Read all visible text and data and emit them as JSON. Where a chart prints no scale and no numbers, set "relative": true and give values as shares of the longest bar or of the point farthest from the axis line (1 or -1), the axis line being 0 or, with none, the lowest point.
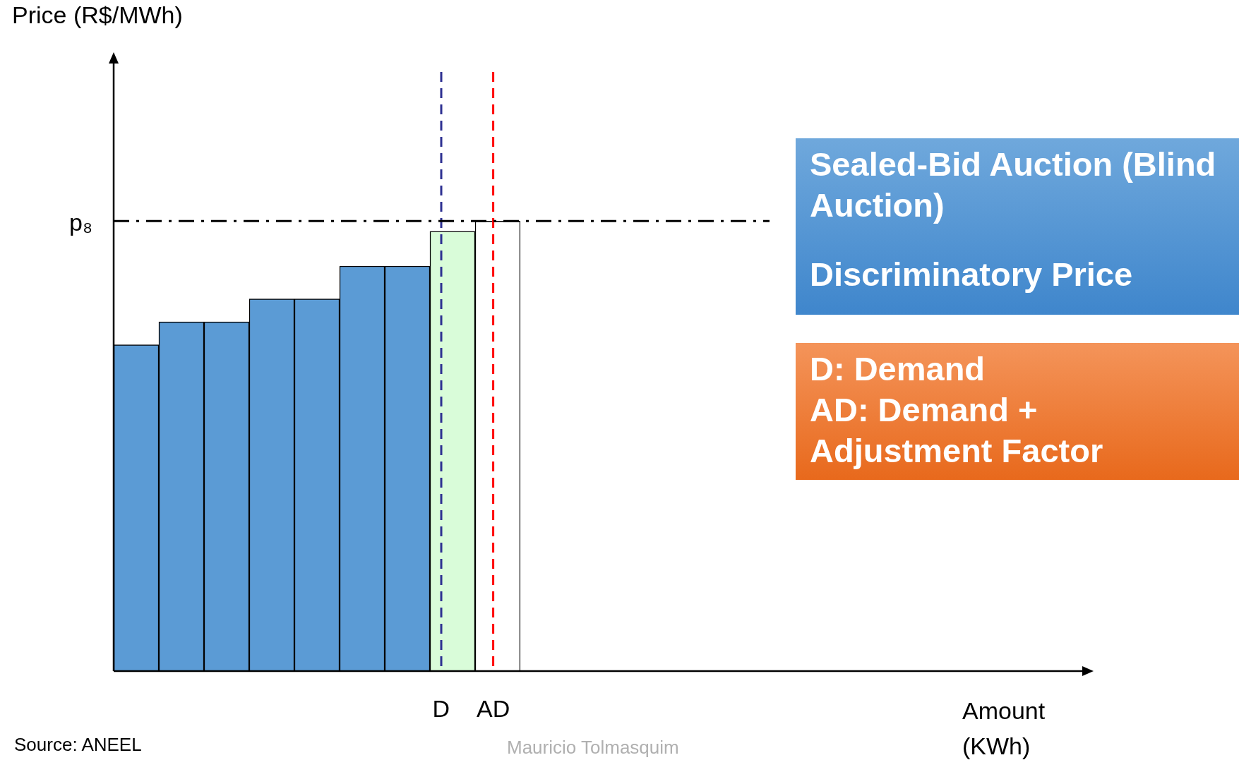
{
  "chart_data": {
    "type": "bar",
    "relative": true,
    "categories": [
      null,
      null,
      null,
      null,
      null,
      null,
      null,
      null,
      null
    ],
    "values": [
      0.725,
      0.776,
      0.776,
      0.827,
      0.827,
      0.9,
      0.9,
      0.977,
      1.0
    ],
    "colors": [
      "#5b9bd5",
      "#5b9bd5",
      "#5b9bd5",
      "#5b9bd5",
      "#5b9bd5",
      "#5b9bd5",
      "#5b9bd5",
      "#d9fcd9",
      "#ffffff"
    ],
    "ref_lines": [
      {
        "axis": "y",
        "value": 1.0,
        "label": "p₈",
        "color": "#000000",
        "line_style": "dashdot"
      }
    ],
    "annotations": [
      "Sealed-Bid Auction (Blind Auction)",
      "Discriminatory Price",
      "D: Demand",
      "AD: Demand + Adjustment Factor",
      "Source: ANEEL",
      "Mauricio Tolmasquim",
      "Price (R$/MWh)",
      "Amount (KWh)",
      "D",
      "AD"
    ],
    "grid": false,
    "legend": false
  }
}
